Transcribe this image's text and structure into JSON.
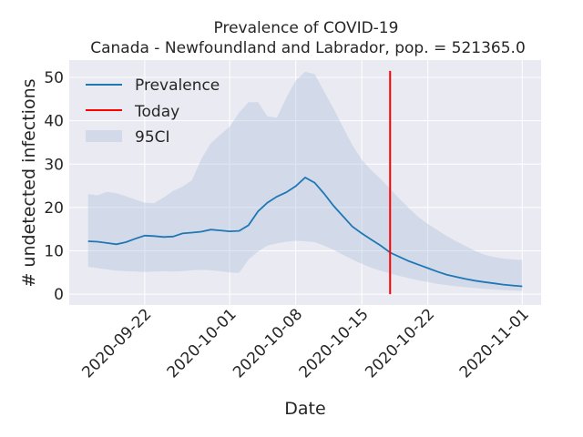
{
  "chart_data": {
    "type": "line",
    "title": "Prevalence of COVID-19",
    "subtitle": "Canada - Newfoundland and Labrador, pop. = 521365.0",
    "xlabel": "Date",
    "ylabel": "# undetected infections",
    "x_ticks": [
      "2020-09-22",
      "2020-10-01",
      "2020-10-08",
      "2020-10-15",
      "2020-10-22",
      "2020-11-01"
    ],
    "y_ticks": [
      0,
      10,
      20,
      30,
      40,
      50
    ],
    "xlim": [
      "2020-09-14",
      "2020-11-03"
    ],
    "ylim": [
      -2.5,
      54
    ],
    "grid": true,
    "legend": {
      "placement": "top-left",
      "entries": [
        "Prevalence",
        "Today",
        "95CI"
      ]
    },
    "today": "2020-10-18",
    "colors": {
      "prevalence": "#1f77b4",
      "today": "#ff0000",
      "band": "#b0c4de",
      "background": "#eaeaf2",
      "grid": "#ffffff"
    },
    "series": [
      {
        "name": "Prevalence",
        "x": [
          "2020-09-16",
          "2020-09-17",
          "2020-09-18",
          "2020-09-19",
          "2020-09-20",
          "2020-09-21",
          "2020-09-22",
          "2020-09-23",
          "2020-09-24",
          "2020-09-25",
          "2020-09-26",
          "2020-09-27",
          "2020-09-28",
          "2020-09-29",
          "2020-09-30",
          "2020-10-01",
          "2020-10-02",
          "2020-10-03",
          "2020-10-04",
          "2020-10-05",
          "2020-10-06",
          "2020-10-07",
          "2020-10-08",
          "2020-10-09",
          "2020-10-10",
          "2020-10-11",
          "2020-10-12",
          "2020-10-13",
          "2020-10-14",
          "2020-10-15",
          "2020-10-16",
          "2020-10-17",
          "2020-10-18",
          "2020-10-19",
          "2020-10-20",
          "2020-10-21",
          "2020-10-22",
          "2020-10-23",
          "2020-10-24",
          "2020-10-25",
          "2020-10-26",
          "2020-10-27",
          "2020-10-28",
          "2020-10-29",
          "2020-10-30",
          "2020-10-31",
          "2020-11-01"
        ],
        "values": [
          12.2,
          12.1,
          11.8,
          11.5,
          12.0,
          12.8,
          13.5,
          13.4,
          13.2,
          13.3,
          14.0,
          14.2,
          14.4,
          14.9,
          14.7,
          14.5,
          14.6,
          15.9,
          19.1,
          21.1,
          22.5,
          23.5,
          24.9,
          26.9,
          25.7,
          23.2,
          20.4,
          18.0,
          15.6,
          14.0,
          12.6,
          11.2,
          9.6,
          8.6,
          7.6,
          6.8,
          6.0,
          5.2,
          4.5,
          4.0,
          3.5,
          3.1,
          2.8,
          2.5,
          2.2,
          2.0,
          1.8
        ],
        "ci_low": [
          6.3,
          6.0,
          5.7,
          5.4,
          5.3,
          5.2,
          5.1,
          5.2,
          5.3,
          5.2,
          5.3,
          5.5,
          5.6,
          5.5,
          5.3,
          5.0,
          4.9,
          8.0,
          9.8,
          11.2,
          11.7,
          12.1,
          12.3,
          12.2,
          12.0,
          11.2,
          10.2,
          9.1,
          8.0,
          7.0,
          6.1,
          5.4,
          4.8,
          4.2,
          3.7,
          3.2,
          2.8,
          2.4,
          2.1,
          1.8,
          1.6,
          1.4,
          1.2,
          1.1,
          0.95,
          0.85,
          0.75
        ],
        "ci_high": [
          23.1,
          22.8,
          23.6,
          23.3,
          22.6,
          21.8,
          21.1,
          21.0,
          22.3,
          23.8,
          24.8,
          26.3,
          31.2,
          34.8,
          36.8,
          38.6,
          41.9,
          44.3,
          44.3,
          41.0,
          40.7,
          45.3,
          49.3,
          51.3,
          50.8,
          46.8,
          42.8,
          38.6,
          34.4,
          31.0,
          28.6,
          26.6,
          24.3,
          22.0,
          19.8,
          17.8,
          16.2,
          14.8,
          13.4,
          12.2,
          11.1,
          10.0,
          9.1,
          8.6,
          8.2,
          8.0,
          7.9
        ]
      }
    ]
  }
}
